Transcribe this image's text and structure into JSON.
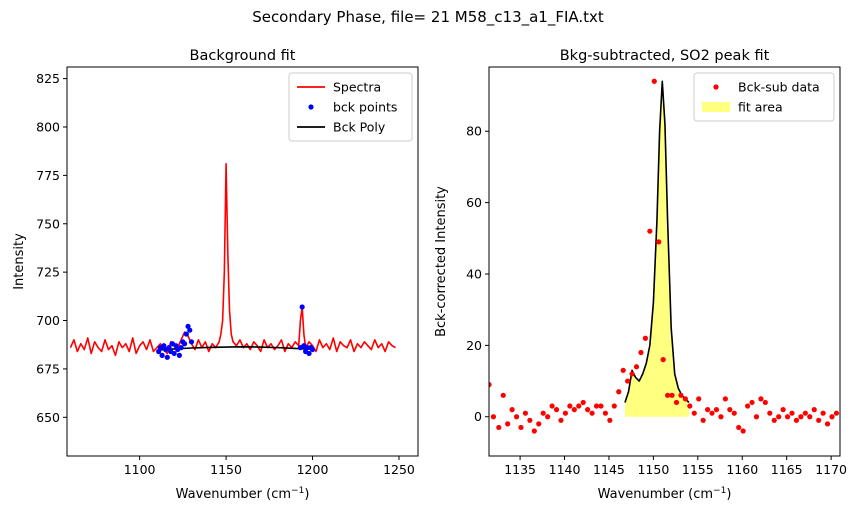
{
  "figure": {
    "suptitle": "Secondary Phase, file= 21 M58_c13_a1_FIA.txt"
  },
  "chart_data": [
    {
      "type": "line",
      "title": "Background fit",
      "xlabel_main": "Wavenumber (cm",
      "xlabel_sup": "−1",
      "xlabel_tail": ")",
      "ylabel": "Intensity",
      "xlim": [
        1058,
        1261
      ],
      "ylim": [
        630,
        831
      ],
      "xticks": [
        1100,
        1150,
        1200,
        1250
      ],
      "yticks": [
        650,
        675,
        700,
        725,
        750,
        775,
        800,
        825
      ],
      "legend_position": "top-right",
      "series": [
        {
          "name": "Spectra",
          "style": "line",
          "color": "#ff0000",
          "x": [
            1060,
            1062,
            1064,
            1066,
            1068,
            1070,
            1072,
            1074,
            1076,
            1078,
            1080,
            1082,
            1084,
            1086,
            1088,
            1090,
            1092,
            1094,
            1096,
            1098,
            1100,
            1102,
            1104,
            1106,
            1108,
            1110,
            1112,
            1114,
            1116,
            1118,
            1120,
            1122,
            1124,
            1126,
            1128,
            1130,
            1132,
            1134,
            1136,
            1138,
            1140,
            1142,
            1144,
            1146,
            1147,
            1148,
            1149,
            1150,
            1151,
            1152,
            1153,
            1154,
            1156,
            1158,
            1160,
            1162,
            1164,
            1166,
            1168,
            1170,
            1172,
            1174,
            1176,
            1178,
            1180,
            1182,
            1184,
            1186,
            1188,
            1190,
            1192,
            1193,
            1194,
            1195,
            1196,
            1198,
            1200,
            1202,
            1204,
            1206,
            1208,
            1210,
            1212,
            1214,
            1216,
            1218,
            1220,
            1222,
            1224,
            1226,
            1228,
            1230,
            1232,
            1234,
            1236,
            1238,
            1240,
            1242,
            1244,
            1246,
            1248
          ],
          "y": [
            686,
            690,
            684,
            688,
            685,
            691,
            683,
            689,
            686,
            684,
            690,
            685,
            687,
            682,
            689,
            686,
            688,
            684,
            691,
            683,
            687,
            689,
            685,
            690,
            684,
            686,
            688,
            685,
            683,
            689,
            687,
            686,
            690,
            694,
            692,
            688,
            685,
            690,
            686,
            689,
            684,
            688,
            686,
            689,
            693,
            700,
            725,
            781,
            735,
            705,
            693,
            689,
            687,
            690,
            686,
            688,
            685,
            689,
            687,
            684,
            690,
            686,
            688,
            685,
            687,
            690,
            684,
            688,
            686,
            689,
            687,
            700,
            707,
            693,
            686,
            689,
            687,
            684,
            690,
            686,
            688,
            685,
            691,
            684,
            689,
            687,
            686,
            690,
            684,
            688,
            686,
            689,
            687,
            685,
            690,
            686,
            688,
            684,
            689,
            687,
            686
          ]
        },
        {
          "name": "bck points",
          "style": "markers",
          "color": "#0000ff",
          "x": [
            1111,
            1112,
            1113,
            1114,
            1115,
            1116,
            1117,
            1118,
            1119,
            1120,
            1121,
            1122,
            1123,
            1124,
            1125,
            1126,
            1127,
            1128,
            1129,
            1130,
            1193,
            1194,
            1195,
            1196,
            1197,
            1198,
            1199,
            1200
          ],
          "y": [
            684,
            686,
            682,
            687,
            685,
            681,
            686,
            684,
            688,
            683,
            687,
            685,
            682,
            686,
            689,
            688,
            693,
            697,
            695,
            689,
            686,
            707,
            687,
            684,
            686,
            683,
            686,
            685
          ]
        },
        {
          "name": "Bck Poly",
          "style": "line",
          "color": "#000000",
          "x": [
            1111,
            1120,
            1130,
            1140,
            1150,
            1160,
            1170,
            1180,
            1190,
            1200
          ],
          "y": [
            684.8,
            685.3,
            685.8,
            686.1,
            686.3,
            686.4,
            686.3,
            686.0,
            685.6,
            685.1
          ]
        }
      ]
    },
    {
      "type": "scatter",
      "title": "Bkg-subtracted, SO2 peak fit",
      "xlabel_main": "Wavenumber (cm",
      "xlabel_sup": "−1",
      "xlabel_tail": ")",
      "ylabel": "Bck-corrected Intensity",
      "xlim": [
        1131.5,
        1171
      ],
      "ylim": [
        -11,
        98
      ],
      "xticks": [
        1135,
        1140,
        1145,
        1150,
        1155,
        1160,
        1165,
        1170
      ],
      "yticks": [
        0,
        20,
        40,
        60,
        80
      ],
      "legend_position": "top-right",
      "series": [
        {
          "name": "Bck-sub data",
          "style": "markers",
          "color": "#ff0000",
          "x": [
            1131.5,
            1132,
            1132.6,
            1133.1,
            1133.6,
            1134.1,
            1134.6,
            1135.1,
            1135.6,
            1136.1,
            1136.6,
            1137.1,
            1137.6,
            1138.1,
            1138.6,
            1139.1,
            1139.6,
            1140.1,
            1140.6,
            1141.1,
            1141.6,
            1142.1,
            1142.6,
            1143.1,
            1143.6,
            1144.1,
            1144.6,
            1145.1,
            1145.6,
            1146.1,
            1146.6,
            1147.1,
            1147.6,
            1148.1,
            1148.6,
            1149.1,
            1149.6,
            1150.1,
            1150.6,
            1151.1,
            1151.6,
            1152.1,
            1152.6,
            1153.1,
            1153.6,
            1154.1,
            1154.6,
            1155.1,
            1155.6,
            1156.1,
            1156.6,
            1157.1,
            1157.6,
            1158.1,
            1158.6,
            1159.1,
            1159.6,
            1160.1,
            1160.6,
            1161.1,
            1161.6,
            1162.1,
            1162.6,
            1163.1,
            1163.6,
            1164.1,
            1164.6,
            1165.1,
            1165.6,
            1166.1,
            1166.6,
            1167.1,
            1167.6,
            1168.1,
            1168.6,
            1169.1,
            1169.6,
            1170.1,
            1170.6
          ],
          "y": [
            9,
            0,
            -3,
            6,
            -2,
            2,
            0,
            -3,
            1,
            -1,
            -4,
            -2,
            1,
            0,
            3,
            2,
            -1,
            1,
            3,
            2,
            3,
            4,
            2,
            1,
            3,
            3,
            1,
            -1,
            3,
            7,
            13,
            10,
            12,
            14,
            18,
            22,
            52,
            94,
            49,
            16,
            6,
            6,
            4,
            6,
            5,
            3,
            1,
            5,
            -1,
            2,
            1,
            2,
            0,
            5,
            2,
            1,
            -3,
            -4,
            3,
            4,
            0,
            5,
            4,
            1,
            -1,
            0,
            2,
            0,
            1,
            -1,
            0,
            1,
            0,
            2,
            -1,
            1,
            -2,
            0,
            1
          ]
        },
        {
          "name": "fit",
          "style": "line",
          "color": "#000000",
          "x": [
            1146.8,
            1147.2,
            1147.6,
            1148.0,
            1148.4,
            1148.8,
            1149.2,
            1149.6,
            1150.0,
            1150.4,
            1150.7,
            1151.0,
            1151.3,
            1151.6,
            1152.0,
            1152.4,
            1152.8,
            1153.2,
            1153.6,
            1154.0
          ],
          "y": [
            4,
            7,
            13,
            11,
            10,
            12,
            15,
            20,
            32,
            55,
            80,
            94,
            82,
            55,
            25,
            12,
            8,
            6,
            5,
            4
          ]
        },
        {
          "name": "fit area",
          "style": "area",
          "color": "#ffff80",
          "x": [
            1146.8,
            1147.2,
            1147.6,
            1148.0,
            1148.4,
            1148.8,
            1149.2,
            1149.6,
            1150.0,
            1150.4,
            1150.7,
            1151.0,
            1151.3,
            1151.6,
            1152.0,
            1152.4,
            1152.8,
            1153.2,
            1153.6,
            1154.0
          ],
          "y": [
            4,
            7,
            13,
            11,
            10,
            12,
            15,
            20,
            32,
            55,
            80,
            94,
            82,
            55,
            25,
            12,
            8,
            6,
            5,
            4
          ]
        }
      ],
      "legend_entries": [
        "Bck-sub data",
        "fit area"
      ]
    }
  ]
}
